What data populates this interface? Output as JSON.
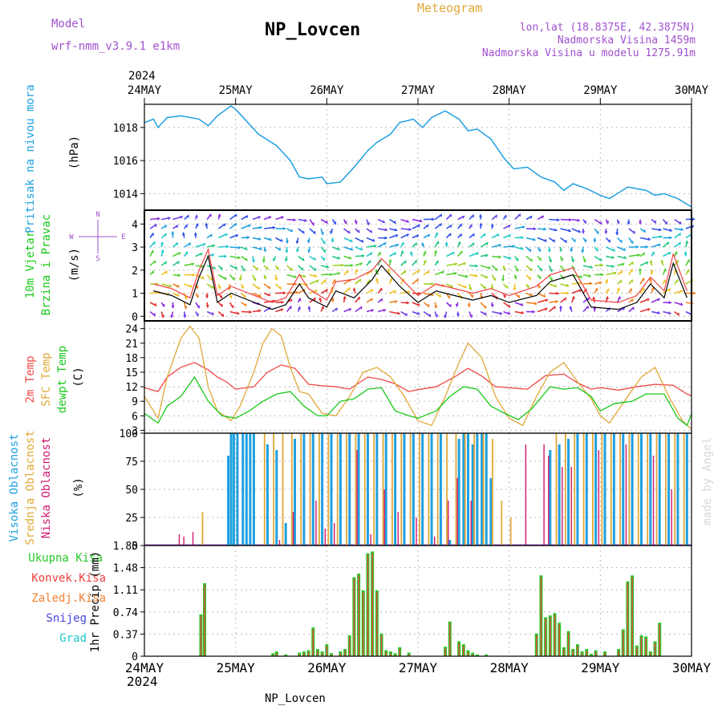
{
  "header": {
    "model_label": "Model",
    "model_value": "wrf-nmm_v3.9.1 e1km",
    "station": "NP_Lovcen",
    "product": "Meteogram",
    "coords": "lon,lat (18.8375E, 42.3875N)",
    "elevation": "Nadmorska Visina 1459m",
    "model_elevation": "Nadmorska Visina u modelu 1275.91m",
    "credit": "made by Angel",
    "footer_station": "NP_Lovcen"
  },
  "time_axis": {
    "year": "2024",
    "dates": [
      "24MAY",
      "25MAY",
      "26MAY",
      "27MAY",
      "28MAY",
      "29MAY",
      "30MAY"
    ]
  },
  "colors": {
    "pressure": "#1ea0e0",
    "temp2m": "#f04848",
    "sfc_temp": "#e0a838",
    "dewpoint": "#18c818",
    "cloud_high": "#1ea0e0",
    "cloud_mid": "#e0a838",
    "cloud_low": "#d01870",
    "precip_total": "#28c828",
    "precip_conv": "#f04040",
    "precip_frozen": "#f08030",
    "snow": "#4848e0",
    "hail": "#20c8c8",
    "wind_label": "#18c818",
    "compass": "#a050d0"
  },
  "wind_labels": {
    "title1": "10m Vjetar",
    "title2": "Brzina i Pravac",
    "units": "(m/s)",
    "compass_n": "N",
    "compass_w": "W",
    "compass_e": "E",
    "compass_s": "S"
  },
  "chart_data": [
    {
      "type": "line",
      "panel": "pressure",
      "ylabel": "Pritisak na nivou mora",
      "units": "(hPa)",
      "ylim": [
        1013,
        1019.4
      ],
      "yticks": [
        "1014",
        "1016",
        "1018"
      ],
      "series": [
        {
          "name": "Pritisak na nivou mora",
          "x_days": [
            0,
            0.1,
            0.15,
            0.25,
            0.4,
            0.6,
            0.7,
            0.8,
            0.95,
            1.0,
            1.1,
            1.25,
            1.45,
            1.6,
            1.7,
            1.8,
            1.95,
            2.0,
            2.15,
            2.3,
            2.45,
            2.55,
            2.7,
            2.8,
            2.95,
            3.05,
            3.15,
            3.3,
            3.45,
            3.55,
            3.65,
            3.8,
            3.95,
            4.05,
            4.2,
            4.35,
            4.5,
            4.6,
            4.7,
            4.85,
            5.0,
            5.1,
            5.3,
            5.5,
            5.6,
            5.7,
            5.85,
            6.0
          ],
          "values": [
            1018.3,
            1018.5,
            1018.0,
            1018.6,
            1018.7,
            1018.5,
            1018.1,
            1018.7,
            1019.3,
            1019.1,
            1018.5,
            1017.6,
            1016.9,
            1016.0,
            1015.0,
            1014.9,
            1015.0,
            1014.6,
            1014.7,
            1015.6,
            1016.6,
            1017.1,
            1017.6,
            1018.3,
            1018.5,
            1018.0,
            1018.6,
            1019.0,
            1018.5,
            1017.8,
            1017.9,
            1017.3,
            1016.1,
            1015.5,
            1015.6,
            1015.0,
            1014.7,
            1014.2,
            1014.6,
            1014.3,
            1013.9,
            1013.7,
            1014.4,
            1014.2,
            1013.9,
            1014.0,
            1013.7,
            1013.2
          ]
        }
      ]
    },
    {
      "type": "line",
      "panel": "wind",
      "ylabel": "10m Vjetar Brzina i Pravac",
      "units": "(m/s)",
      "ylim": [
        -0.2,
        4.6
      ],
      "yticks": [
        "0",
        "1",
        "2",
        "3",
        "4"
      ],
      "series": [
        {
          "name": "speed",
          "x_days": [
            0.1,
            0.3,
            0.5,
            0.6,
            0.7,
            0.8,
            0.95,
            1.4,
            1.55,
            1.7,
            1.8,
            2.0,
            2.1,
            2.3,
            2.5,
            2.6,
            2.8,
            3.0,
            3.2,
            3.4,
            3.6,
            3.8,
            4.0,
            4.3,
            4.45,
            4.7,
            4.9,
            5.2,
            5.4,
            5.55,
            5.7,
            5.8,
            5.95
          ],
          "values": [
            1.1,
            0.9,
            0.5,
            1.7,
            2.6,
            0.6,
            1.0,
            0.3,
            0.5,
            1.4,
            0.8,
            0.4,
            1.1,
            0.8,
            1.6,
            2.2,
            1.3,
            0.6,
            1.1,
            0.9,
            0.7,
            0.9,
            0.6,
            0.9,
            1.5,
            1.8,
            0.4,
            0.3,
            0.6,
            1.4,
            0.8,
            2.3,
            0.8
          ]
        },
        {
          "name": "gust",
          "x_days": [
            0.1,
            0.3,
            0.5,
            0.6,
            0.7,
            0.8,
            0.95,
            1.4,
            1.55,
            1.7,
            1.8,
            2.0,
            2.1,
            2.3,
            2.5,
            2.6,
            2.8,
            3.0,
            3.2,
            3.4,
            3.6,
            3.8,
            4.0,
            4.3,
            4.45,
            4.7,
            4.9,
            5.2,
            5.4,
            5.55,
            5.7,
            5.8,
            5.95
          ],
          "values": [
            1.4,
            1.2,
            0.8,
            2.0,
            2.9,
            0.9,
            1.3,
            0.6,
            0.8,
            1.8,
            1.2,
            0.7,
            1.5,
            1.6,
            2.0,
            2.5,
            1.7,
            0.9,
            1.4,
            1.2,
            1.0,
            1.2,
            0.9,
            1.3,
            1.8,
            2.1,
            0.7,
            0.6,
            0.9,
            1.7,
            1.1,
            2.7,
            1.1
          ]
        }
      ]
    },
    {
      "type": "line",
      "panel": "temperature",
      "ylabel": "2m Temp / SFC Temp / dewpt Temp",
      "ylabel_parts": [
        "2m Temp",
        "SFC Temp",
        "dewpt Temp"
      ],
      "units": "(C)",
      "ylim": [
        2.4,
        25.6
      ],
      "yticks": [
        "3",
        "6",
        "9",
        "12",
        "15",
        "18",
        "21",
        "24"
      ],
      "series": [
        {
          "name": "2m Temp",
          "x_days": [
            0,
            0.15,
            0.25,
            0.4,
            0.55,
            0.7,
            0.8,
            0.9,
            1.0,
            1.2,
            1.35,
            1.5,
            1.65,
            1.8,
            1.95,
            2.1,
            2.25,
            2.45,
            2.6,
            2.75,
            2.9,
            3.0,
            3.2,
            3.4,
            3.55,
            3.7,
            3.85,
            4.0,
            4.2,
            4.4,
            4.6,
            4.75,
            4.9,
            5.0,
            5.2,
            5.4,
            5.6,
            5.8,
            5.95,
            6.0
          ],
          "values": [
            11.8,
            11.0,
            14.0,
            16.0,
            17.0,
            15.5,
            14.0,
            13.0,
            11.5,
            12.0,
            15.0,
            16.5,
            15.8,
            12.5,
            12.2,
            12.0,
            11.5,
            14.0,
            13.5,
            12.6,
            11.0,
            11.4,
            12.0,
            14.0,
            15.8,
            14.2,
            12.0,
            11.8,
            11.5,
            14.3,
            14.6,
            12.8,
            11.5,
            11.8,
            11.3,
            12.0,
            12.5,
            12.3,
            10.5,
            10.1
          ]
        },
        {
          "name": "SFC Temp",
          "x_days": [
            0,
            0.15,
            0.25,
            0.4,
            0.5,
            0.6,
            0.7,
            0.8,
            0.95,
            1.05,
            1.2,
            1.3,
            1.4,
            1.5,
            1.6,
            1.7,
            1.8,
            1.95,
            2.1,
            2.25,
            2.4,
            2.55,
            2.7,
            2.85,
            3.0,
            3.15,
            3.3,
            3.45,
            3.55,
            3.7,
            3.85,
            4.0,
            4.15,
            4.3,
            4.45,
            4.6,
            4.75,
            4.9,
            5.0,
            5.1,
            5.3,
            5.45,
            5.6,
            5.75,
            5.9,
            6.0
          ],
          "values": [
            10.0,
            5.5,
            14.0,
            22.0,
            24.5,
            22.0,
            12.0,
            7.0,
            5.0,
            8.0,
            15.0,
            21.0,
            24.0,
            22.5,
            16.0,
            11.0,
            10.5,
            6.5,
            6.0,
            10.0,
            15.0,
            16.0,
            14.0,
            10.0,
            5.0,
            4.0,
            10.0,
            17.0,
            21.0,
            18.0,
            10.0,
            5.5,
            4.0,
            10.0,
            15.0,
            17.0,
            13.0,
            9.5,
            6.0,
            4.5,
            10.0,
            14.0,
            16.0,
            10.0,
            5.0,
            3.2
          ]
        },
        {
          "name": "dewpt Temp",
          "x_days": [
            0,
            0.15,
            0.25,
            0.4,
            0.55,
            0.7,
            0.85,
            1.0,
            1.15,
            1.3,
            1.45,
            1.6,
            1.75,
            1.9,
            2.0,
            2.15,
            2.3,
            2.45,
            2.6,
            2.75,
            2.9,
            3.0,
            3.2,
            3.35,
            3.5,
            3.65,
            3.8,
            3.95,
            4.1,
            4.25,
            4.45,
            4.6,
            4.75,
            4.9,
            5.0,
            5.15,
            5.35,
            5.5,
            5.7,
            5.85,
            5.95,
            6.0
          ],
          "values": [
            6.5,
            4.5,
            8.0,
            10.0,
            14.0,
            9.0,
            6.0,
            5.5,
            7.0,
            9.0,
            10.5,
            11.0,
            8.0,
            6.0,
            6.0,
            9.0,
            9.5,
            11.5,
            11.8,
            7.0,
            6.0,
            5.5,
            7.0,
            10.0,
            12.0,
            11.5,
            8.0,
            6.5,
            5.2,
            7.5,
            12.0,
            11.5,
            11.8,
            10.0,
            7.0,
            8.5,
            9.0,
            10.5,
            10.5,
            5.5,
            4.0,
            6.4
          ]
        }
      ]
    },
    {
      "type": "bar",
      "panel": "cloud",
      "ylabel_parts": [
        "Visoka Oblacnost",
        "Srednja Oblacnost",
        "Niska Oblacnost"
      ],
      "units": "(%)",
      "ylim": [
        0,
        100
      ],
      "yticks": [
        "0",
        "25",
        "50",
        "75",
        "100"
      ],
      "series": [
        {
          "name": "Visoka Oblacnost",
          "x_days": [
            0.92,
            0.95,
            0.98,
            1.02,
            1.08,
            1.12,
            1.16,
            1.2,
            1.35,
            1.45,
            1.55,
            1.65,
            1.75,
            1.85,
            1.95,
            2.05,
            2.15,
            2.25,
            2.35,
            2.45,
            2.55,
            2.65,
            2.75,
            2.85,
            2.95,
            3.05,
            3.15,
            3.25,
            3.35,
            3.45,
            3.5,
            3.55,
            3.6,
            3.65,
            3.7,
            3.75,
            3.8,
            4.45,
            4.55,
            4.65,
            4.75,
            4.85,
            4.95,
            5.05,
            5.15,
            5.25,
            5.35,
            5.45,
            5.55,
            5.65,
            5.75,
            5.85,
            5.95
          ],
          "values": [
            80,
            100,
            100,
            100,
            100,
            100,
            100,
            100,
            90,
            85,
            20,
            95,
            100,
            100,
            100,
            100,
            100,
            100,
            100,
            100,
            100,
            100,
            100,
            100,
            100,
            100,
            100,
            100,
            5,
            95,
            100,
            100,
            90,
            100,
            100,
            100,
            60,
            85,
            90,
            95,
            100,
            100,
            100,
            100,
            100,
            100,
            100,
            100,
            100,
            100,
            100,
            100,
            100
          ]
        },
        {
          "name": "Srednja Oblacnost",
          "x_days": [
            0.62,
            1.3,
            1.4,
            1.5,
            1.6,
            1.7,
            1.8,
            1.9,
            2.0,
            2.1,
            2.2,
            2.3,
            2.4,
            2.5,
            2.6,
            2.7,
            2.8,
            2.9,
            3.0,
            3.1,
            3.2,
            3.3,
            3.4,
            3.5,
            3.6,
            3.7,
            3.8,
            3.9,
            4.0,
            4.5,
            4.6,
            4.7,
            4.8,
            4.9,
            5.0,
            5.1,
            5.2,
            5.3,
            5.4,
            5.5,
            5.6,
            5.7,
            5.8,
            5.9
          ],
          "values": [
            30,
            100,
            100,
            100,
            100,
            100,
            100,
            100,
            100,
            100,
            100,
            100,
            100,
            100,
            100,
            100,
            100,
            100,
            100,
            100,
            100,
            100,
            100,
            100,
            100,
            100,
            95,
            40,
            25,
            100,
            100,
            100,
            100,
            100,
            100,
            100,
            100,
            100,
            100,
            100,
            100,
            100,
            100,
            100
          ]
        },
        {
          "name": "Niska Oblacnost",
          "x_days": [
            0.4,
            0.45,
            0.55,
            1.5,
            1.65,
            1.9,
            2.0,
            2.1,
            2.35,
            2.5,
            2.65,
            2.8,
            3.0,
            3.2,
            3.35,
            3.45,
            3.6,
            4.2,
            4.4,
            4.45,
            4.6,
            4.7,
            5.0,
            5.3,
            5.6,
            5.8
          ],
          "values": [
            10,
            8,
            12,
            5,
            30,
            40,
            15,
            20,
            85,
            10,
            50,
            30,
            25,
            8,
            40,
            60,
            40,
            90,
            90,
            80,
            70,
            70,
            85,
            90,
            80,
            50
          ]
        }
      ]
    },
    {
      "type": "bar",
      "panel": "precip",
      "ylabel": "1hr Precip (mm)",
      "legend": [
        "Ukupna Kisa",
        "Konvek.Kisa",
        "Zaledj.Kisa",
        "Snijeg",
        "Grad"
      ],
      "ylim": [
        0,
        1.85
      ],
      "yticks": [
        "0",
        "0.37",
        "0.74",
        "1.11",
        "1.48",
        "1.85"
      ],
      "series": [
        {
          "name": "Ukupna Kisa",
          "x_days": [
            0.62,
            0.66,
            1.41,
            1.45,
            1.55,
            1.7,
            1.75,
            1.8,
            1.85,
            1.9,
            1.95,
            2.0,
            2.05,
            2.15,
            2.2,
            2.25,
            2.3,
            2.35,
            2.4,
            2.45,
            2.5,
            2.55,
            2.6,
            2.65,
            2.7,
            2.75,
            2.8,
            2.9,
            3.3,
            3.35,
            3.45,
            3.5,
            3.55,
            3.6,
            3.65,
            3.75,
            4.3,
            4.35,
            4.4,
            4.45,
            4.5,
            4.55,
            4.6,
            4.65,
            4.7,
            4.75,
            4.8,
            4.85,
            4.9,
            4.95,
            5.05,
            5.2,
            5.25,
            5.3,
            5.35,
            5.4,
            5.45,
            5.5,
            5.55,
            5.6,
            5.65
          ],
          "values": [
            0.7,
            1.22,
            0.05,
            0.08,
            0.03,
            0.06,
            0.08,
            0.1,
            0.48,
            0.12,
            0.08,
            0.2,
            0.05,
            0.08,
            0.12,
            0.35,
            1.32,
            1.38,
            1.1,
            1.72,
            1.75,
            1.1,
            0.38,
            0.1,
            0.08,
            0.05,
            0.15,
            0.06,
            0.16,
            0.58,
            0.25,
            0.2,
            0.1,
            0.06,
            0.03,
            0.03,
            0.38,
            1.35,
            0.65,
            0.68,
            0.72,
            0.56,
            0.15,
            0.42,
            0.12,
            0.2,
            0.08,
            0.12,
            0.04,
            0.1,
            0.08,
            0.12,
            0.45,
            1.25,
            1.35,
            0.18,
            0.35,
            0.33,
            0.08,
            0.25,
            0.56
          ]
        }
      ]
    }
  ]
}
